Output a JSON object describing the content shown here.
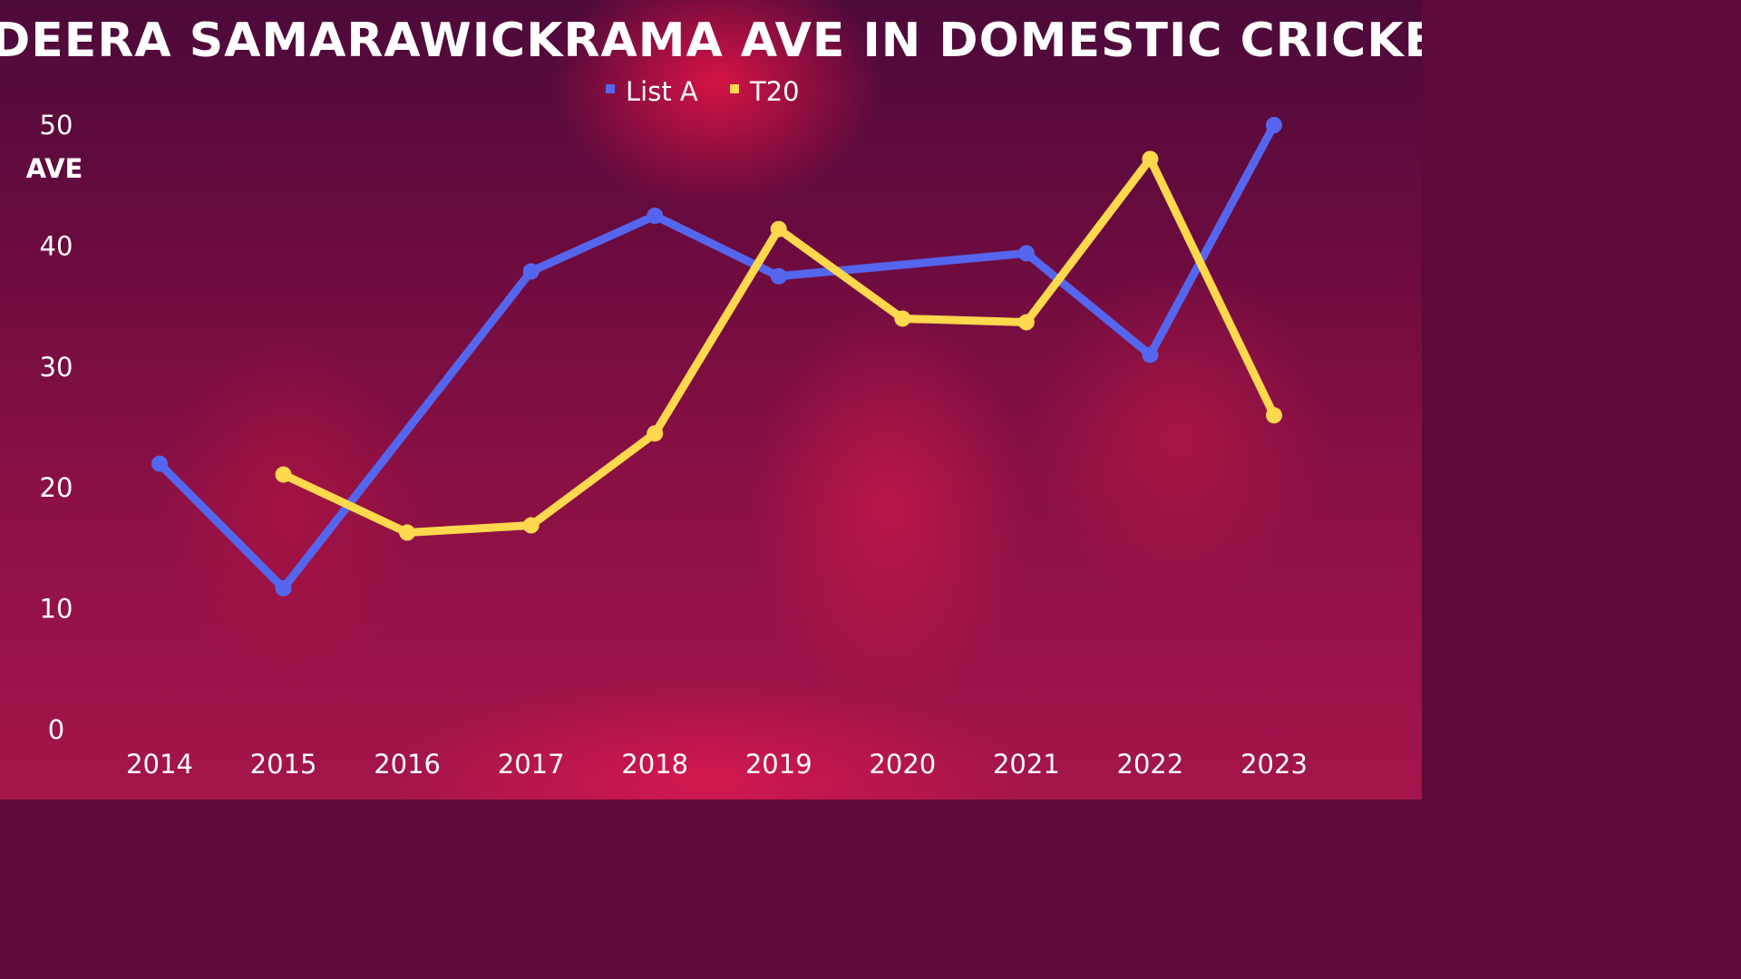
{
  "chart_data": {
    "type": "line",
    "title": "SADEERA SAMARAWICKRAMA AVE IN DOMESTIC CRICKET",
    "xlabel": "",
    "ylabel": "AVE",
    "categories": [
      "2014",
      "2015",
      "2016",
      "2017",
      "2018",
      "2019",
      "2020",
      "2021",
      "2022",
      "2023"
    ],
    "ylim": [
      0,
      50
    ],
    "yticks": [
      0,
      10,
      20,
      30,
      40,
      50
    ],
    "grid": false,
    "legend": "top-center",
    "series": [
      {
        "name": "List A",
        "color": "#5566ee",
        "values": [
          22.0,
          11.7,
          null,
          37.9,
          42.5,
          37.5,
          null,
          39.4,
          31.0,
          50.0
        ]
      },
      {
        "name": "T20",
        "color": "#ffd84d",
        "values": [
          null,
          21.1,
          16.3,
          16.9,
          24.5,
          41.4,
          34.0,
          33.7,
          47.2,
          26.0
        ]
      }
    ]
  }
}
